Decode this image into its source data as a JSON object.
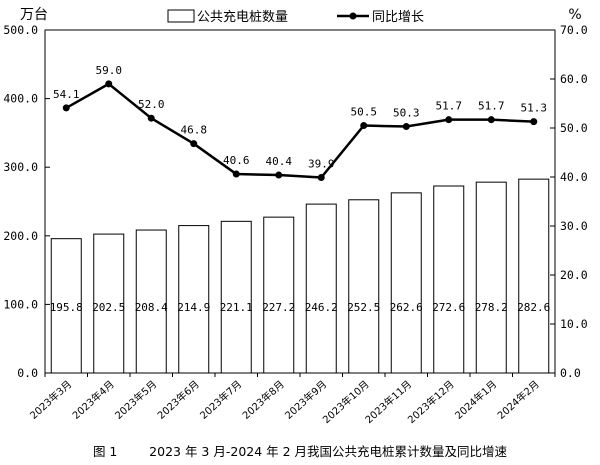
{
  "chart_data": {
    "type": "bar",
    "categories": [
      "2023年3月",
      "2023年4月",
      "2023年5月",
      "2023年6月",
      "2023年7月",
      "2023年8月",
      "2023年9月",
      "2023年10月",
      "2023年11月",
      "2023年12月",
      "2024年1月",
      "2024年2月"
    ],
    "series": [
      {
        "name": "公共充电桩数量",
        "type": "bar",
        "axis": "left",
        "values": [
          195.8,
          202.5,
          208.4,
          214.9,
          221.1,
          227.2,
          246.2,
          252.5,
          262.6,
          272.6,
          278.2,
          282.6
        ],
        "labels": [
          "195.8",
          "202.5",
          "208.4",
          "214.9",
          "221.1",
          "227.2",
          "246.2",
          "252.5",
          "262.6",
          "272.6",
          "278.2",
          "282.6"
        ]
      },
      {
        "name": "同比增长",
        "type": "line",
        "axis": "right",
        "values": [
          54.1,
          59.0,
          52.0,
          46.8,
          40.6,
          40.4,
          39.9,
          50.5,
          50.3,
          51.7,
          51.7,
          51.3
        ],
        "labels": [
          "54.1",
          "59.0",
          "52.0",
          "46.8",
          "40.6",
          "40.4",
          "39.9",
          "50.5",
          "50.3",
          "51.7",
          "51.7",
          "51.3"
        ]
      }
    ],
    "y_left": {
      "unit": "万台",
      "lim": [
        0,
        500
      ],
      "ticks": [
        "0.0",
        "100.0",
        "200.0",
        "300.0",
        "400.0",
        "500.0"
      ]
    },
    "y_right": {
      "unit": "%",
      "lim": [
        0,
        70
      ],
      "ticks": [
        "0.0",
        "10.0",
        "20.0",
        "30.0",
        "40.0",
        "50.0",
        "60.0",
        "70.0"
      ]
    },
    "legend_position": "top",
    "grid": false,
    "caption_label": "图 1",
    "caption_text": "2023 年 3 月-2024 年 2 月我国公共充电桩累计数量及同比增速"
  }
}
